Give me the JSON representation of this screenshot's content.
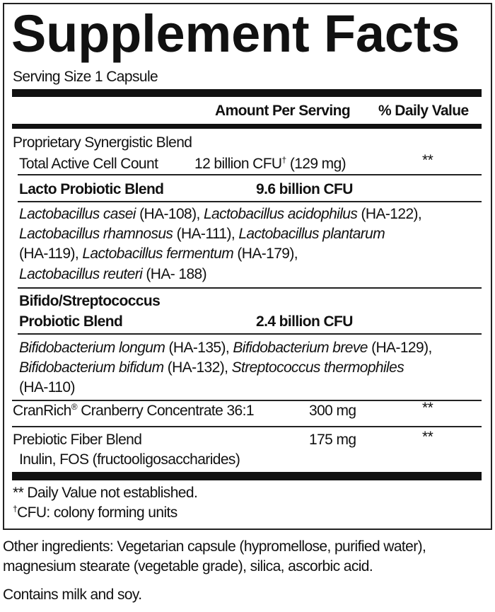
{
  "title": "Supplement Facts",
  "serving_size": "Serving Size 1 Capsule",
  "header": {
    "amount": "Amount Per Serving",
    "daily_value": "% Daily Value"
  },
  "proprietary": {
    "label": "Proprietary Synergistic Blend",
    "total_label": "Total Active Cell Count",
    "total_amount": "12 billion CFU",
    "total_dagger": "†",
    "total_mg": " (129 mg)",
    "total_dv": "**"
  },
  "lacto": {
    "label": "Lacto Probiotic Blend",
    "amount": "9.6 billion CFU",
    "lines": [
      [
        {
          "t": "Lactobacillus casei",
          "i": true
        },
        {
          "t": " (HA-108), "
        },
        {
          "t": "Lactobacillus acidophilus",
          "i": true
        },
        {
          "t": " (HA-122),"
        }
      ],
      [
        {
          "t": "Lactobacillus rhamnosus",
          "i": true
        },
        {
          "t": " (HA-111), "
        },
        {
          "t": "Lactobacillus plantarum",
          "i": true
        }
      ],
      [
        {
          "t": "(HA-119), "
        },
        {
          "t": "Lactobacillus fermentum",
          "i": true
        },
        {
          "t": " (HA-179),"
        }
      ],
      [
        {
          "t": "Lactobacillus reuteri",
          "i": true
        },
        {
          "t": " (HA- 188)"
        }
      ]
    ]
  },
  "bifido": {
    "label_line1": "Bifido/Streptococcus",
    "label_line2": "Probiotic Blend",
    "amount": "2.4 billion CFU",
    "lines": [
      [
        {
          "t": "Bifidobacterium longum",
          "i": true
        },
        {
          "t": " (HA-135), "
        },
        {
          "t": "Bifidobacterium breve",
          "i": true
        },
        {
          "t": " (HA-129),"
        }
      ],
      [
        {
          "t": "Bifidobacterium bifidum",
          "i": true
        },
        {
          "t": " (HA-132), "
        },
        {
          "t": "Streptococcus thermophiles",
          "i": true
        }
      ],
      [
        {
          "t": "(HA-110)"
        }
      ]
    ]
  },
  "cranrich": {
    "label": "CranRich",
    "reg": "®",
    "label_rest": " Cranberry Concentrate 36:1",
    "amount": "300 mg",
    "dv": "**"
  },
  "prebiotic": {
    "label": "Prebiotic Fiber Blend",
    "sub": "Inulin, FOS (fructooligosaccharides)",
    "amount": "175 mg",
    "dv": "**"
  },
  "footnotes": {
    "dv": "** Daily Value not established.",
    "cfu_dagger": "†",
    "cfu": "CFU: colony forming units"
  },
  "other_ingredients": [
    "Other ingredients: Vegetarian capsule (hypromellose, purified water),",
    "magnesium stearate (vegetable grade), silica, ascorbic acid."
  ],
  "allergens": "Contains milk and soy."
}
